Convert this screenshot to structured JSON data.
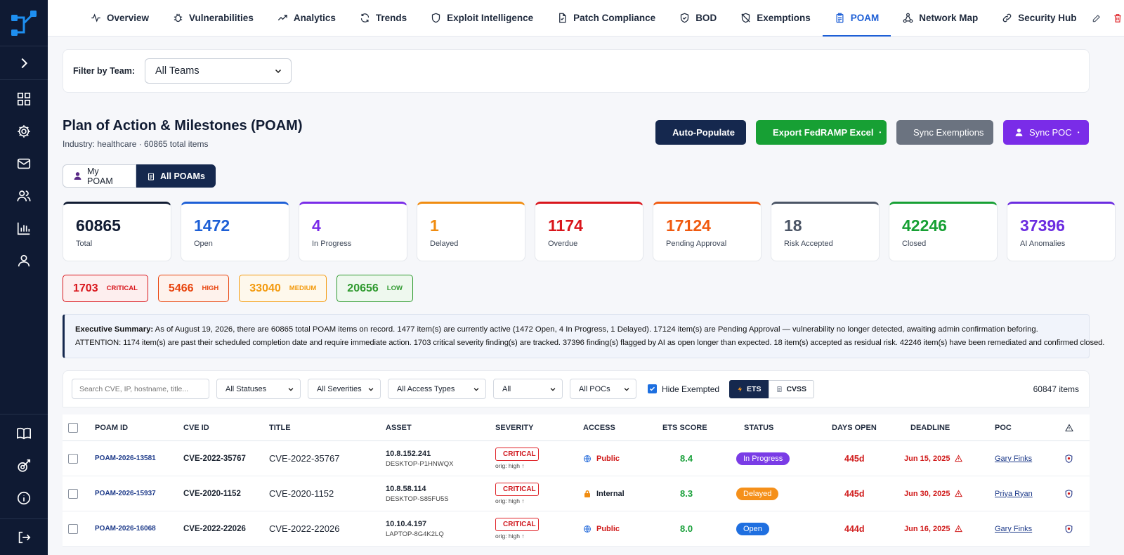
{
  "nav": {
    "tabs": [
      {
        "label": "Overview",
        "icon": "activity-icon"
      },
      {
        "label": "Vulnerabilities",
        "icon": "bug-icon"
      },
      {
        "label": "Analytics",
        "icon": "trend-line-icon"
      },
      {
        "label": "Trends",
        "icon": "refresh-icon"
      },
      {
        "label": "Exploit Intelligence",
        "icon": "shield-icon"
      },
      {
        "label": "Patch Compliance",
        "icon": "document-check-icon"
      },
      {
        "label": "BOD",
        "icon": "shield-check-icon"
      },
      {
        "label": "Exemptions",
        "icon": "shield-off-icon"
      },
      {
        "label": "POAM",
        "icon": "clipboard-icon"
      },
      {
        "label": "Network Map",
        "icon": "network-icon"
      },
      {
        "label": "Security Hub",
        "icon": "link-icon"
      }
    ],
    "active_tab": "POAM"
  },
  "filter": {
    "label": "Filter by Team:",
    "value": "All Teams"
  },
  "header": {
    "title": "Plan of Action & Milestones (POAM)",
    "subtitle": "Industry: healthcare · 60865 total items"
  },
  "actions": {
    "auto_populate": "Auto-Populate",
    "export": "Export FedRAMP Excel",
    "sync_exemptions": "Sync Exemptions",
    "sync_poc": "Sync POC"
  },
  "toggle": {
    "my": "My POAM",
    "all": "All POAMs"
  },
  "stats": [
    {
      "value": "60865",
      "label": "Total",
      "color": "#111c33"
    },
    {
      "value": "1472",
      "label": "Open",
      "color": "#1d5fd6"
    },
    {
      "value": "4",
      "label": "In Progress",
      "color": "#7a2ce8"
    },
    {
      "value": "1",
      "label": "Delayed",
      "color": "#f08c10"
    },
    {
      "value": "1174",
      "label": "Overdue",
      "color": "#d9161c"
    },
    {
      "value": "17124",
      "label": "Pending Approval",
      "color": "#f05a10"
    },
    {
      "value": "18",
      "label": "Risk Accepted",
      "color": "#4b5566"
    },
    {
      "value": "42246",
      "label": "Closed",
      "color": "#17a034"
    },
    {
      "value": "37396",
      "label": "AI Anomalies",
      "color": "#6b2ce0"
    }
  ],
  "severity": [
    {
      "count": "1703",
      "label": "CRITICAL",
      "color": "#d9161c",
      "bg": "#fdeeee"
    },
    {
      "count": "5466",
      "label": "HIGH",
      "color": "#e8440e",
      "bg": "#fef2ec"
    },
    {
      "count": "33040",
      "label": "MEDIUM",
      "color": "#f39a0d",
      "bg": "#fef8ec"
    },
    {
      "count": "20656",
      "label": "LOW",
      "color": "#2f9a2f",
      "bg": "#eef8ee"
    }
  ],
  "summary": {
    "heading": "Executive Summary:",
    "line1": "As of August 19, 2026, there are 60865 total POAM items on record. 1477 item(s) are currently active (1472 Open, 4 In Progress, 1 Delayed). 17124 item(s) are Pending Approval — vulnerability no longer detected, awaiting admin confirmation beforing.",
    "line2": "ATTENTION: 1174 item(s) are past their scheduled completion date and require immediate action. 1703 critical severity finding(s) are tracked. 37396 finding(s) flagged by AI as open longer than expected. 18 item(s) accepted as residual risk. 42246 item(s) have been remediated and confirmed closed."
  },
  "table_filters": {
    "search_placeholder": "Search CVE, IP, hostname, title...",
    "status": "All Statuses",
    "severity": "All Severities",
    "access": "All Access Types",
    "all": "All",
    "pocs": "All POCs",
    "hide_exempted": "Hide Exempted",
    "ets": "ETS",
    "cvss": "CVSS",
    "count": "60847 items"
  },
  "table": {
    "headers": [
      "POAM ID",
      "CVE ID",
      "TITLE",
      "ASSET",
      "SEVERITY",
      "ACCESS",
      "ETS SCORE",
      "STATUS",
      "DAYS OPEN",
      "DEADLINE",
      "POC"
    ],
    "rows": [
      {
        "id": "POAM-2026-13581",
        "cve": "CVE-2022-35767",
        "title": "CVE-2022-35767",
        "ip": "10.8.152.241",
        "host": "DESKTOP-P1HNWQX",
        "severity": "CRITICAL",
        "orig": "orig: high ↑",
        "access": "Public",
        "access_icon": "globe-icon",
        "ets": "8.4",
        "status": "In Progress",
        "status_color": "#7a3ce6",
        "days": "445d",
        "deadline": "Jun 15, 2025",
        "poc": "Gary Finks"
      },
      {
        "id": "POAM-2026-15937",
        "cve": "CVE-2020-1152",
        "title": "CVE-2020-1152",
        "ip": "10.8.58.114",
        "host": "DESKTOP-S85FU5S",
        "severity": "CRITICAL",
        "orig": "orig: high ↑",
        "access": "Internal",
        "access_icon": "lock-icon",
        "ets": "8.3",
        "status": "Delayed",
        "status_color": "#f5901a",
        "days": "445d",
        "deadline": "Jun 30, 2025",
        "poc": "Priya Ryan"
      },
      {
        "id": "POAM-2026-16068",
        "cve": "CVE-2022-22026",
        "title": "CVE-2022-22026",
        "ip": "10.10.4.197",
        "host": "LAPTOP-8G4K2LQ",
        "severity": "CRITICAL",
        "orig": "orig: high ↑",
        "access": "Public",
        "access_icon": "globe-icon",
        "ets": "8.0",
        "status": "Open",
        "status_color": "#1f6fe0",
        "days": "444d",
        "deadline": "Jun 16, 2025",
        "poc": "Gary Finks"
      }
    ]
  }
}
